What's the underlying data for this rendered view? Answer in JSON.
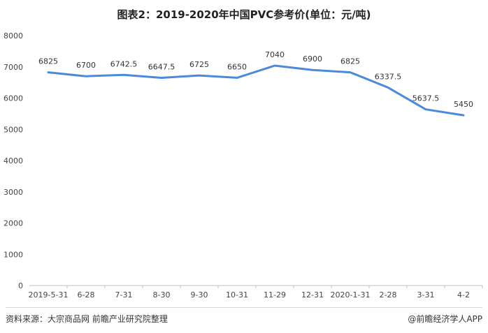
{
  "title": "图表2：2019-2020年中国PVC参考价(单位：元/吨)",
  "footer": {
    "source": "资料来源：大宗商品网 前瞻产业研究院整理",
    "credit": "@前瞻经济学人APP"
  },
  "colors": {
    "line": "#4a89dc",
    "axis": "#bfbfbf"
  },
  "chart_data": {
    "type": "line",
    "title": "图表2：2019-2020年中国PVC参考价(单位：元/吨)",
    "xlabel": "",
    "ylabel": "",
    "ylim": [
      0,
      8000
    ],
    "yticks": [
      0,
      1000,
      2000,
      3000,
      4000,
      5000,
      6000,
      7000,
      8000
    ],
    "grid": false,
    "legend": "none",
    "categories": [
      "2019-5-31",
      "6-28",
      "7-31",
      "8-30",
      "9-30",
      "10-31",
      "11-29",
      "12-31",
      "2020-1-31",
      "2-28",
      "3-31",
      "4-2"
    ],
    "series": [
      {
        "values": [
          6825,
          6700,
          6742.5,
          6647.5,
          6725,
          6650,
          7040,
          6900,
          6825,
          6337.5,
          5637.5,
          5450
        ],
        "labels": [
          "6825",
          "6700",
          "6742.5",
          "6647.5",
          "6725",
          "6650",
          "7040",
          "6900",
          "6825",
          "6337.5",
          "5637.5",
          "5450"
        ]
      }
    ]
  }
}
